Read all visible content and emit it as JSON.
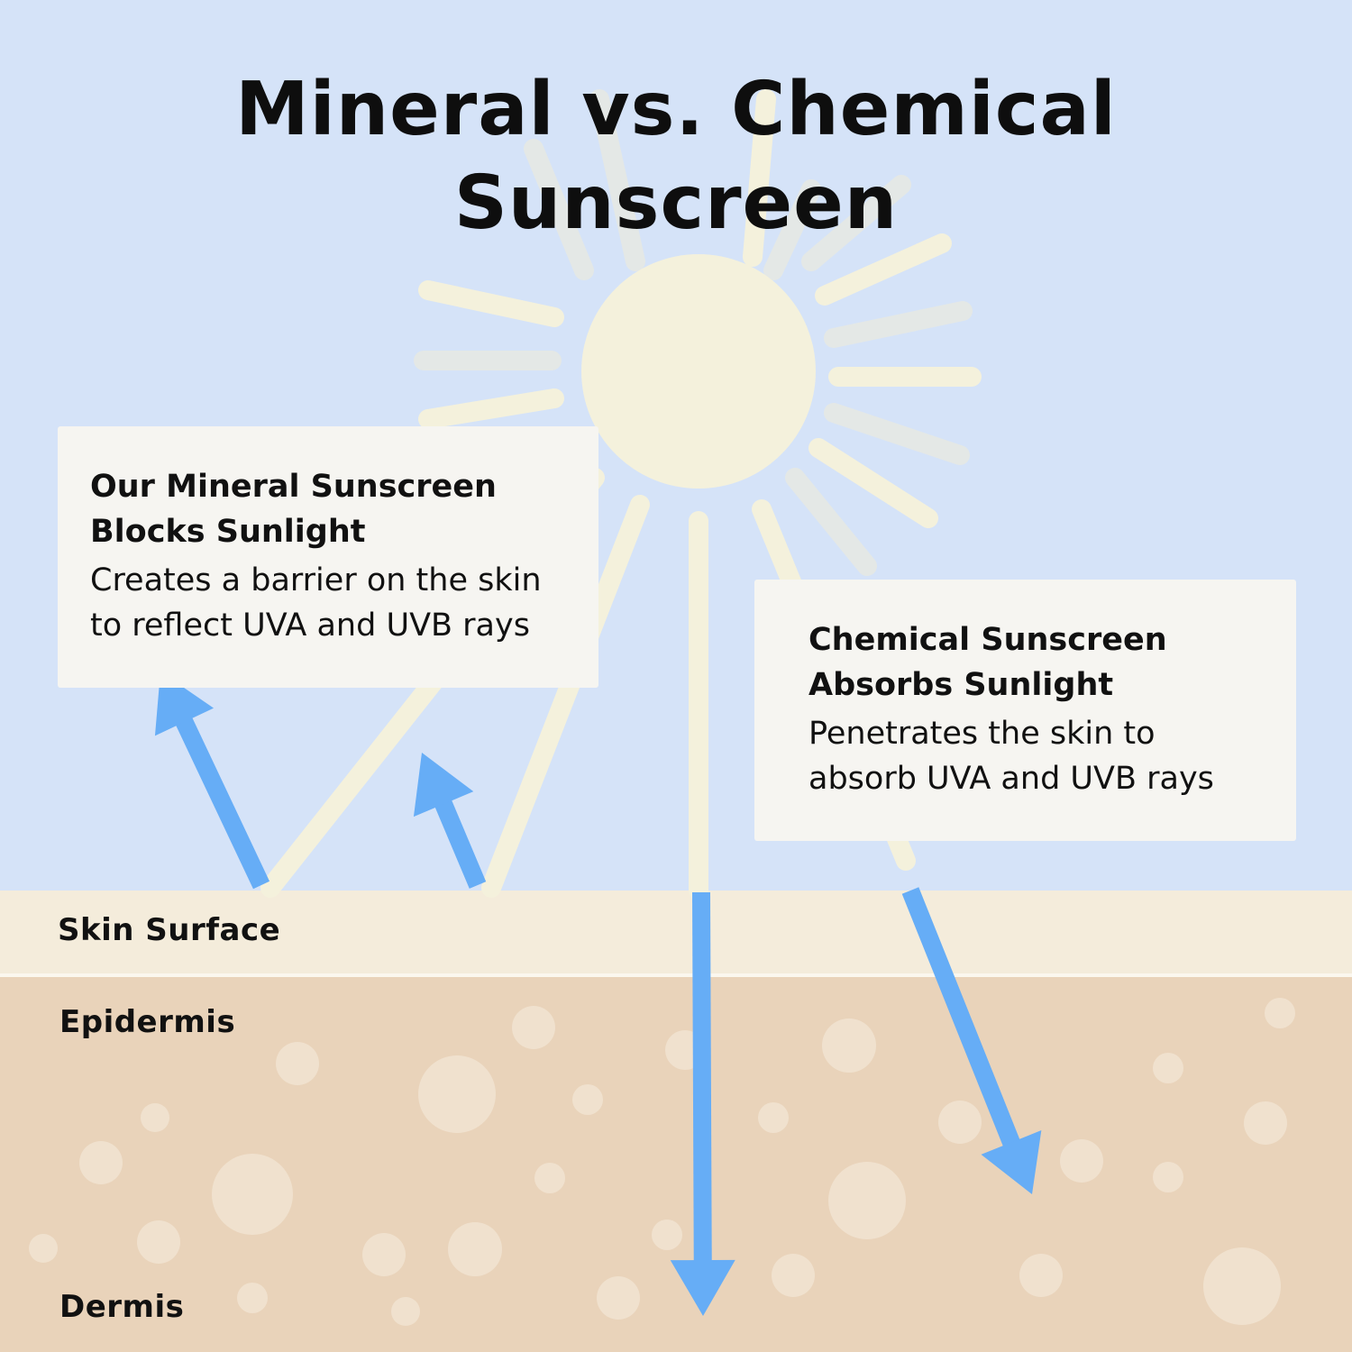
{
  "title": {
    "line1": "Mineral vs. Chemical",
    "line2": "Sunscreen"
  },
  "mineral_card": {
    "heading_line1": "Our Mineral Sunscreen",
    "heading_line2": "Blocks Sunlight",
    "body_line1": "Creates a barrier on the skin",
    "body_line2": "to reflect UVA and UVB rays"
  },
  "chemical_card": {
    "heading_line1": "Chemical Sunscreen",
    "heading_line2": "Absorbs Sunlight",
    "body_line1": "Penetrates the skin to",
    "body_line2": "absorb UVA and UVB rays"
  },
  "layers": {
    "skin_surface": "Skin Surface",
    "epidermis": "Epidermis",
    "dermis": "Dermis"
  },
  "colors": {
    "sky": "#d5e3f8",
    "sun": "#f4f1dc",
    "sun_ray_faded": "#e4e8e6",
    "skin_surface": "#f4ecdb",
    "epidermis": "#e9d3ba",
    "bubble": "#f0e1ce",
    "arrow": "#66adf6",
    "card": "#f6f5f1"
  },
  "icons": {
    "sun": "sun-icon",
    "arrow": "arrow-icon"
  }
}
